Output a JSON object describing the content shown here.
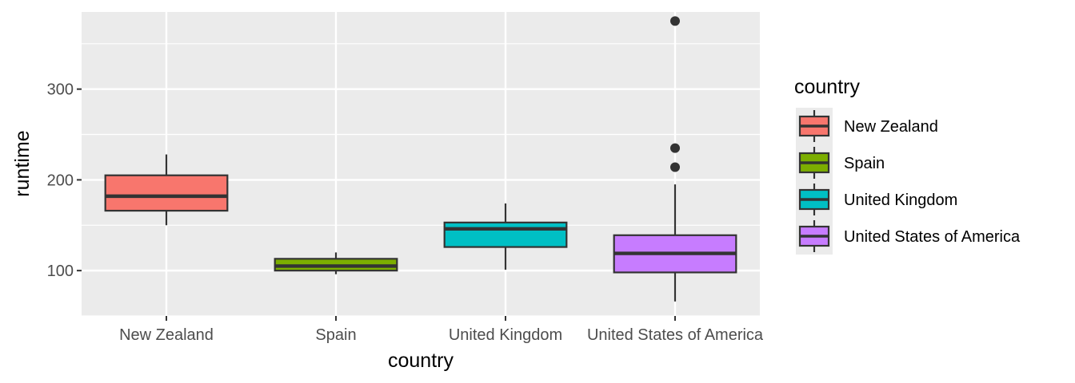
{
  "chart_data": {
    "type": "boxplot",
    "xlabel": "country",
    "ylabel": "runtime",
    "categories": [
      "New Zealand",
      "Spain",
      "United Kingdom",
      "United States of America"
    ],
    "ylim": [
      50,
      385
    ],
    "yticks": [
      100,
      200,
      300
    ],
    "grid": true,
    "legend": {
      "title": "country",
      "position": "right",
      "entries": [
        "New Zealand",
        "Spain",
        "United Kingdom",
        "United States of America"
      ]
    },
    "boxes": [
      {
        "category": "New Zealand",
        "min": 150,
        "q1": 166,
        "median": 182,
        "q3": 205,
        "max": 228,
        "outliers": [],
        "color": "#F8766D"
      },
      {
        "category": "Spain",
        "min": 96,
        "q1": 100,
        "median": 105,
        "q3": 113,
        "max": 120,
        "outliers": [],
        "color": "#7CAE00"
      },
      {
        "category": "United Kingdom",
        "min": 101,
        "q1": 126,
        "median": 146,
        "q3": 153,
        "max": 174,
        "outliers": [],
        "color": "#00BFC4"
      },
      {
        "category": "United States of America",
        "min": 66,
        "q1": 98,
        "median": 119,
        "q3": 139,
        "max": 195,
        "outliers": [
          214,
          235,
          375
        ],
        "color": "#C77CFF"
      }
    ]
  }
}
